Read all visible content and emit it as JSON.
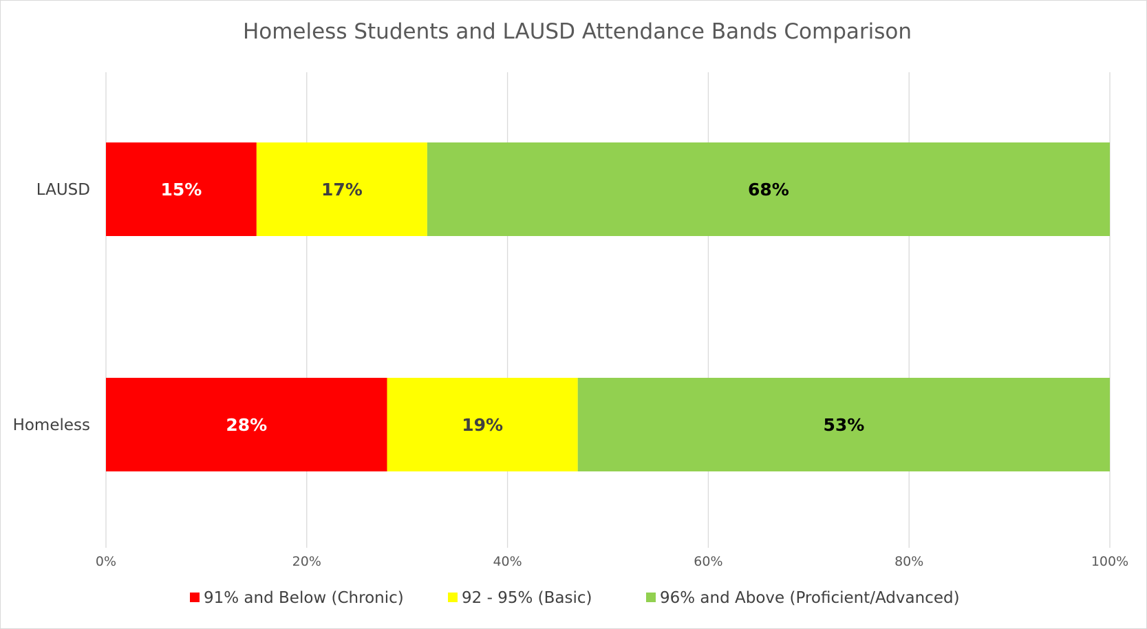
{
  "chart_data": {
    "type": "bar",
    "orientation": "horizontal",
    "stacked": true,
    "percent_stacked": true,
    "title": "Homeless Students and LAUSD Attendance Bands Comparison",
    "categories": [
      "LAUSD",
      "Homeless"
    ],
    "series": [
      {
        "name": "91% and Below (Chronic)",
        "values": [
          15,
          28
        ],
        "labels": [
          "15%",
          "28%"
        ],
        "color": "#ff0000",
        "label_color": "#ffffff"
      },
      {
        "name": "92 - 95% (Basic)",
        "values": [
          17,
          19
        ],
        "labels": [
          "17%",
          "19%"
        ],
        "color": "#ffff00",
        "label_color": "#404040"
      },
      {
        "name": "96% and Above (Proficient/Advanced)",
        "values": [
          68,
          53
        ],
        "labels": [
          "68%",
          "53%"
        ],
        "color": "#92d050",
        "label_color": "#000000"
      }
    ],
    "x_ticks": [
      "0%",
      "20%",
      "40%",
      "60%",
      "80%",
      "100%"
    ],
    "xlim": [
      0,
      100
    ],
    "grid": true,
    "legend_position": "bottom"
  }
}
